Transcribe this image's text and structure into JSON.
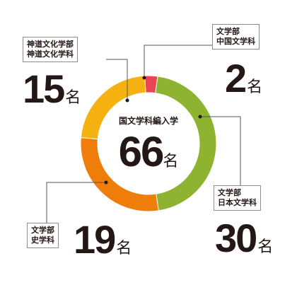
{
  "chart_data": {
    "type": "pie",
    "title": "国文学科編入学",
    "total": {
      "value": "66",
      "unit": "名"
    },
    "slices": [
      {
        "label_lines": [
          "文学部",
          "中国文学科"
        ],
        "value": 2,
        "display": "2",
        "unit": "名",
        "color": "#e94652"
      },
      {
        "label_lines": [
          "文学部",
          "日本文学科"
        ],
        "value": 30,
        "display": "30",
        "unit": "名",
        "color": "#8db330"
      },
      {
        "label_lines": [
          "文学部",
          "史学科"
        ],
        "value": 19,
        "display": "19",
        "unit": "名",
        "color": "#ee7d0a"
      },
      {
        "label_lines": [
          "神道文化学部",
          "神道文化学科"
        ],
        "value": 15,
        "display": "15",
        "unit": "名",
        "color": "#f4b110"
      }
    ]
  }
}
